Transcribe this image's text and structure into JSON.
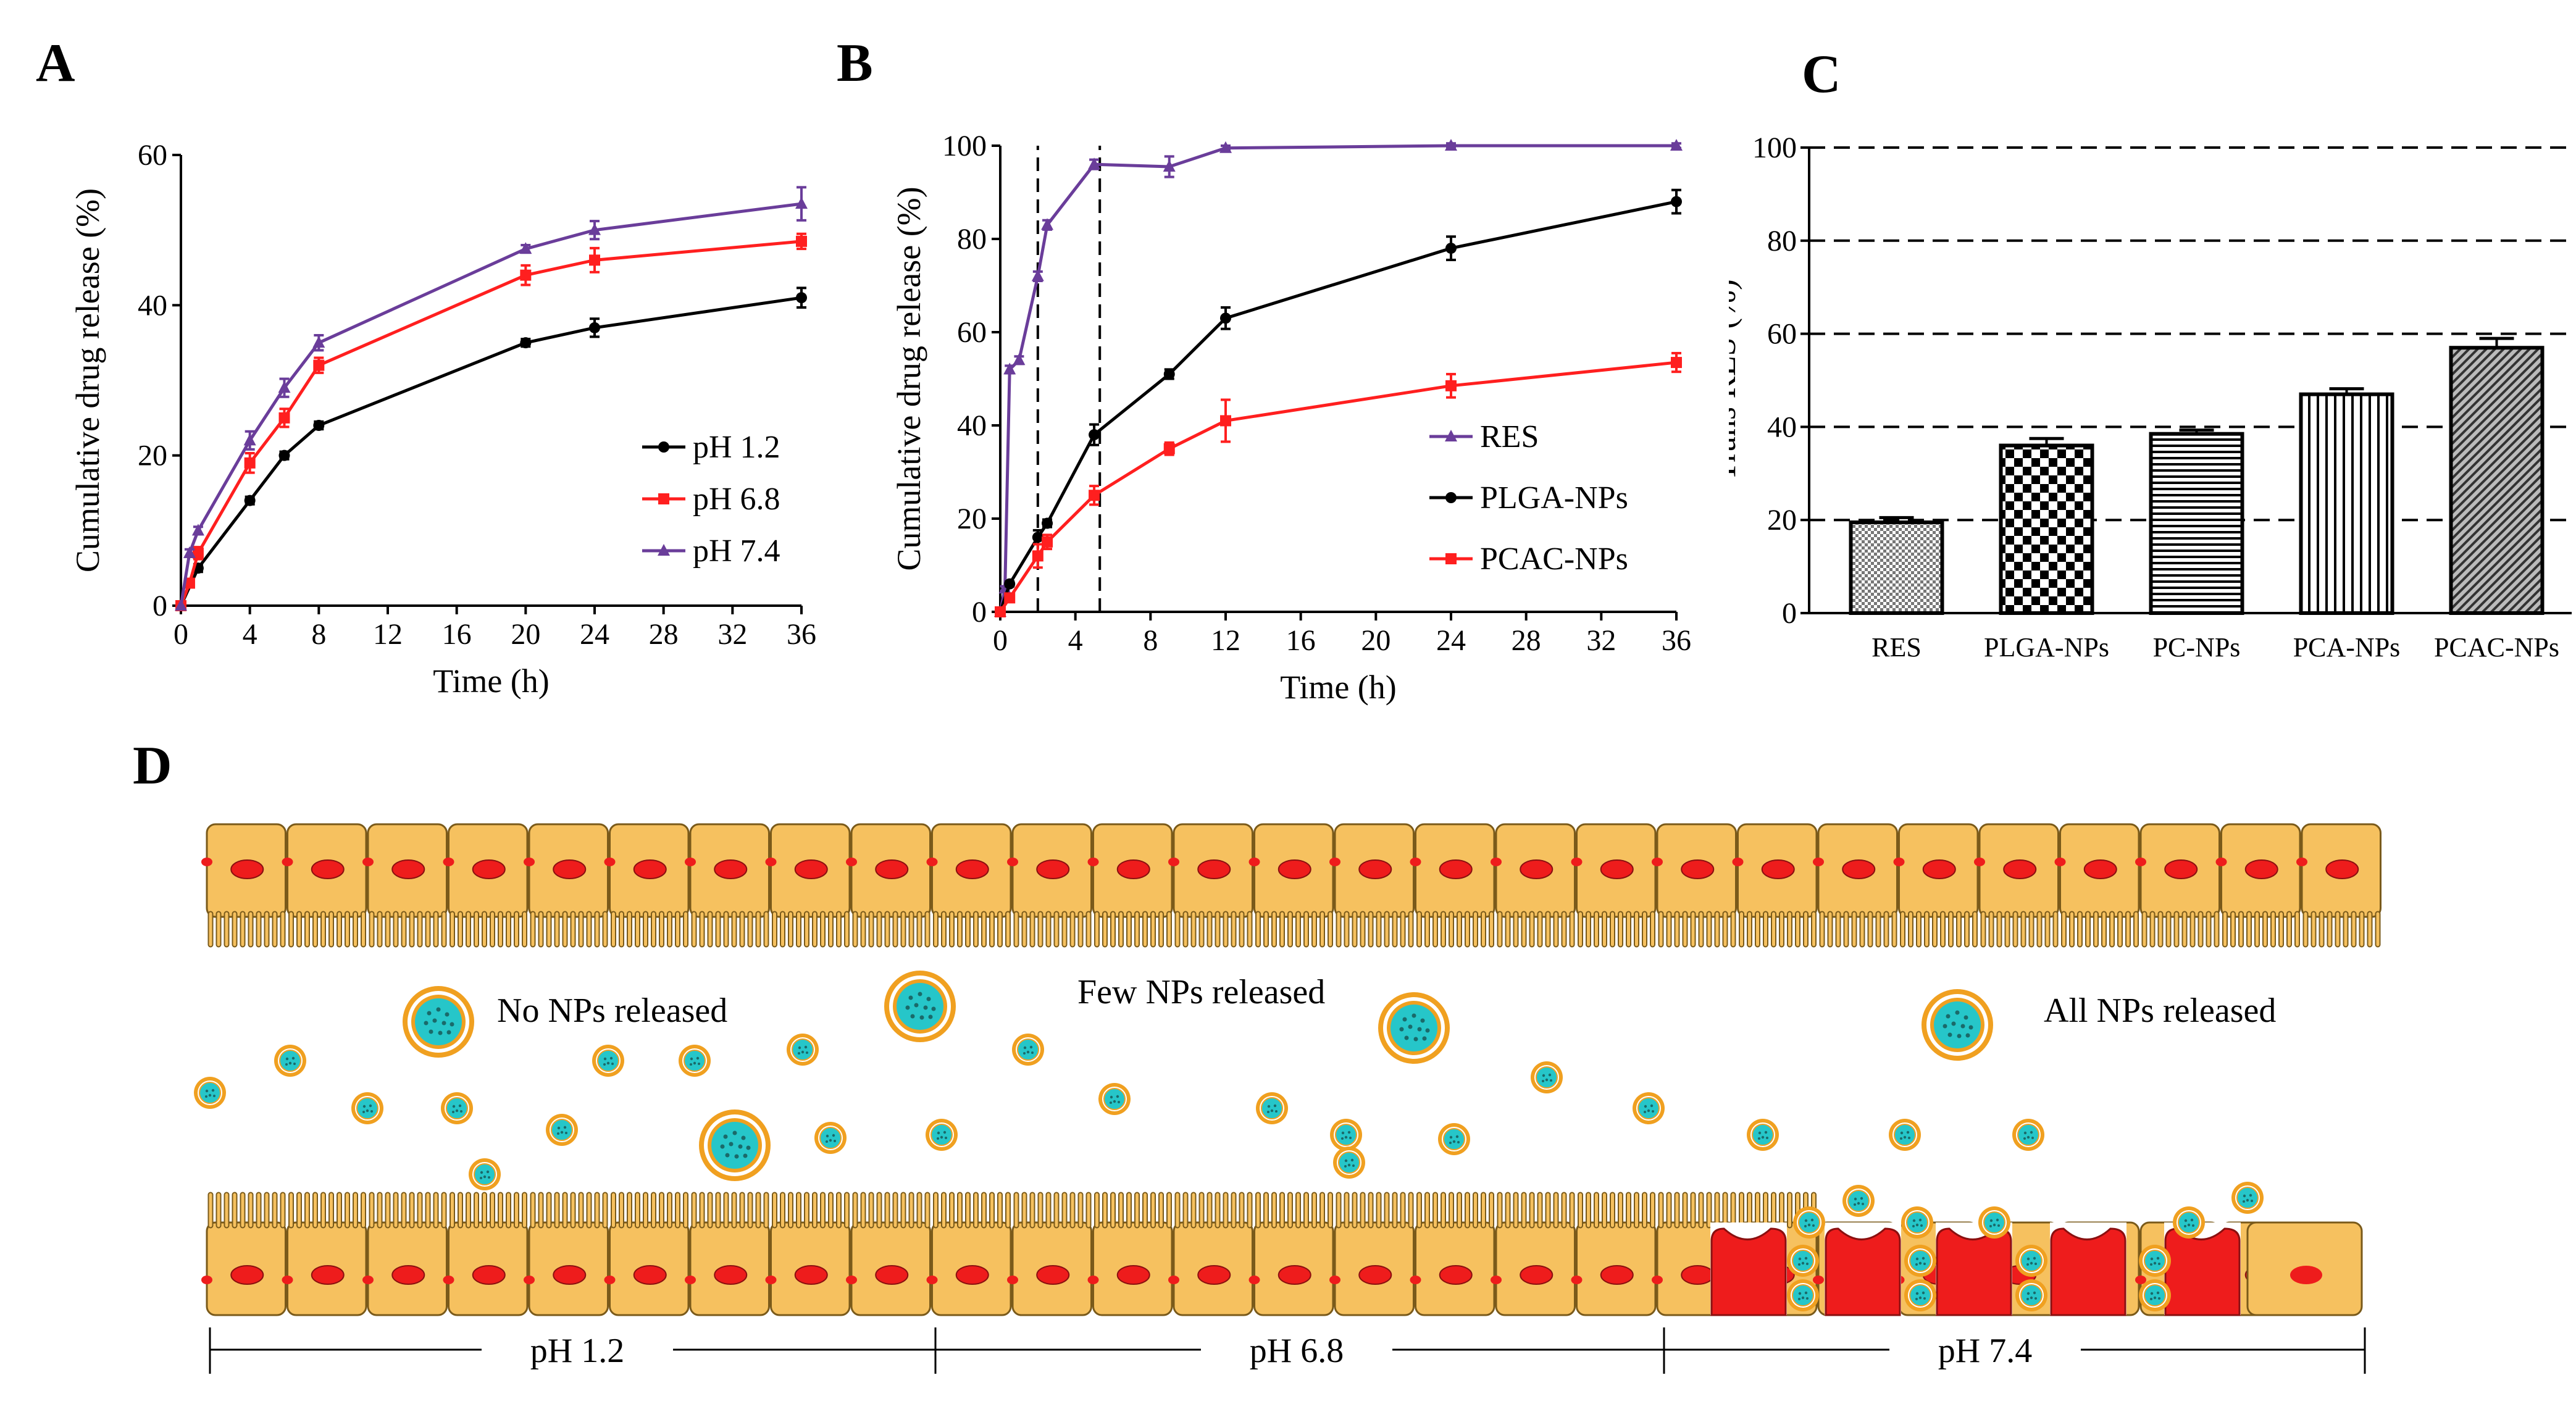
{
  "panels": {
    "a": "A",
    "b": "B",
    "c": "C",
    "d": "D"
  },
  "colors": {
    "black": "#000000",
    "red": "#ff1f1f",
    "purple": "#6a3d9a",
    "cell": "#f6c15f",
    "nucleus": "#ee1c1c",
    "np_core": "#26c6c9",
    "np_ring": "#f0a020"
  },
  "chart_data": [
    {
      "type": "line",
      "title": "A",
      "xlabel": "Time (h)",
      "ylabel": "Cumulative drug release (%)",
      "xlim": [
        0,
        36
      ],
      "ylim": [
        0,
        60
      ],
      "xticks": [
        "0",
        "4",
        "8",
        "12",
        "16",
        "20",
        "24",
        "28",
        "32",
        "36"
      ],
      "yticks": [
        "0",
        "20",
        "40",
        "60"
      ],
      "legend_position": "bottom-right",
      "series": [
        {
          "name": "pH 1.2",
          "color": "#000000",
          "marker": "circle",
          "x": [
            0,
            1,
            4,
            6,
            8,
            20,
            24,
            36
          ],
          "y": [
            0,
            5,
            14,
            20,
            24,
            35,
            37,
            41
          ],
          "err": [
            0,
            0.5,
            0.5,
            0.5,
            0.5,
            0.5,
            1.2,
            1.3
          ]
        },
        {
          "name": "pH 6.8",
          "color": "#ff1f1f",
          "marker": "square",
          "x": [
            0,
            0.5,
            1,
            4,
            6,
            8,
            20,
            24,
            36
          ],
          "y": [
            0,
            3,
            7,
            19,
            25,
            32,
            44,
            46,
            48.5
          ],
          "err": [
            0,
            0.5,
            0.8,
            1.3,
            1.2,
            1.0,
            1.3,
            1.6,
            1.0
          ]
        },
        {
          "name": "pH 7.4",
          "color": "#6a3d9a",
          "marker": "triangle",
          "x": [
            0,
            0.5,
            1,
            4,
            6,
            8,
            20,
            24,
            36
          ],
          "y": [
            0,
            7,
            10,
            22,
            29,
            35,
            47.5,
            50,
            53.5
          ],
          "err": [
            0,
            0.5,
            0.5,
            1.2,
            1.2,
            1.0,
            0.5,
            1.2,
            2.2
          ]
        }
      ]
    },
    {
      "type": "line",
      "title": "B",
      "xlabel": "Time (h)",
      "ylabel": "Cumulative drug release (%)",
      "xlim": [
        0,
        36
      ],
      "ylim": [
        0,
        100
      ],
      "xticks": [
        "0",
        "4",
        "8",
        "12",
        "16",
        "20",
        "24",
        "28",
        "32",
        "36"
      ],
      "yticks": [
        "0",
        "20",
        "40",
        "60",
        "80",
        "100"
      ],
      "vlines": [
        2,
        5.3
      ],
      "legend_position": "bottom-right",
      "series": [
        {
          "name": "RES",
          "color": "#6a3d9a",
          "marker": "triangle",
          "x": [
            0,
            0.25,
            0.5,
            1,
            2,
            2.5,
            5,
            9,
            12,
            24,
            36
          ],
          "y": [
            0,
            5,
            52,
            54,
            72,
            83,
            96,
            95.5,
            99.5,
            100,
            100
          ],
          "err": [
            0,
            0.5,
            0.8,
            0.8,
            1,
            1,
            1,
            2.2,
            0.5,
            0.5,
            0.5
          ]
        },
        {
          "name": "PLGA-NPs",
          "color": "#000000",
          "marker": "circle",
          "x": [
            0,
            0.5,
            2,
            2.5,
            5,
            9,
            12,
            24,
            36
          ],
          "y": [
            0,
            6,
            16,
            19,
            38,
            51,
            63,
            78,
            88
          ],
          "err": [
            0,
            0.5,
            1.5,
            0.8,
            2.2,
            1.0,
            2.3,
            2.5,
            2.5
          ]
        },
        {
          "name": "PCAC-NPs",
          "color": "#ff1f1f",
          "marker": "square",
          "x": [
            0,
            0.5,
            2,
            2.5,
            5,
            9,
            12,
            24,
            36
          ],
          "y": [
            0,
            3,
            12,
            15,
            25,
            35,
            41,
            48.5,
            53.5
          ],
          "err": [
            0,
            0.5,
            2.5,
            1.5,
            2.0,
            1.3,
            4.5,
            2.5,
            2.0
          ]
        }
      ]
    },
    {
      "type": "bar",
      "title": "C",
      "xlabel": "",
      "ylabel": "Trans RES (%)",
      "ylim": [
        0,
        100
      ],
      "yticks": [
        "0",
        "20",
        "40",
        "60",
        "80",
        "100"
      ],
      "gridlines": [
        20,
        40,
        60,
        80,
        100
      ],
      "categories": [
        "RES",
        "PLGA-NPs",
        "PC-NPs",
        "PCA-NPs",
        "PCAC-NPs"
      ],
      "values": [
        19.5,
        36,
        38.5,
        47,
        57
      ],
      "errors": [
        1,
        1.5,
        0.8,
        1.2,
        2
      ],
      "patterns": [
        "fine-check",
        "checker",
        "horizontal",
        "vertical",
        "diagonal"
      ]
    }
  ],
  "diagram": {
    "labels": {
      "no_release": "No NPs released",
      "few_release": "Few NPs released",
      "all_release": "All NPs released"
    },
    "regions": [
      "pH 1.2",
      "pH 6.8",
      "pH 7.4"
    ]
  }
}
